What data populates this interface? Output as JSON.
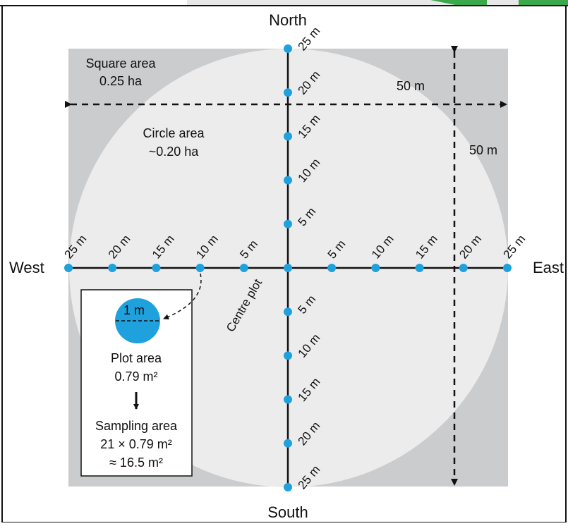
{
  "compass": {
    "north": "North",
    "south": "South",
    "east": "East",
    "west": "West"
  },
  "areas": {
    "square_label": "Square area",
    "square_value": "0.25 ha",
    "circle_label": "Circle area",
    "circle_value": "~0.20 ha"
  },
  "dimensions": {
    "width_label": "50 m",
    "height_label": "50 m"
  },
  "transects": {
    "north": [
      "5 m",
      "10 m",
      "15 m",
      "20 m",
      "25 m"
    ],
    "south": [
      "5 m",
      "10 m",
      "15 m",
      "20 m",
      "25 m"
    ],
    "east": [
      "5 m",
      "10 m",
      "15 m",
      "20 m",
      "25 m"
    ],
    "west": [
      "5 m",
      "10 m",
      "15 m",
      "20 m",
      "25 m"
    ],
    "centre_label": "Centre plot"
  },
  "plot_box": {
    "diameter_label": "1 m",
    "plot_area_label": "Plot area",
    "plot_area_value": "0.79 m²",
    "sampling_label": "Sampling area",
    "sampling_formula": "21 × 0.79 m²",
    "sampling_value": "≈ 16.5 m²"
  },
  "colors": {
    "square": "#cbcccd",
    "circle": "#ececed",
    "point": "#1ea1dc",
    "line": "#111111"
  }
}
